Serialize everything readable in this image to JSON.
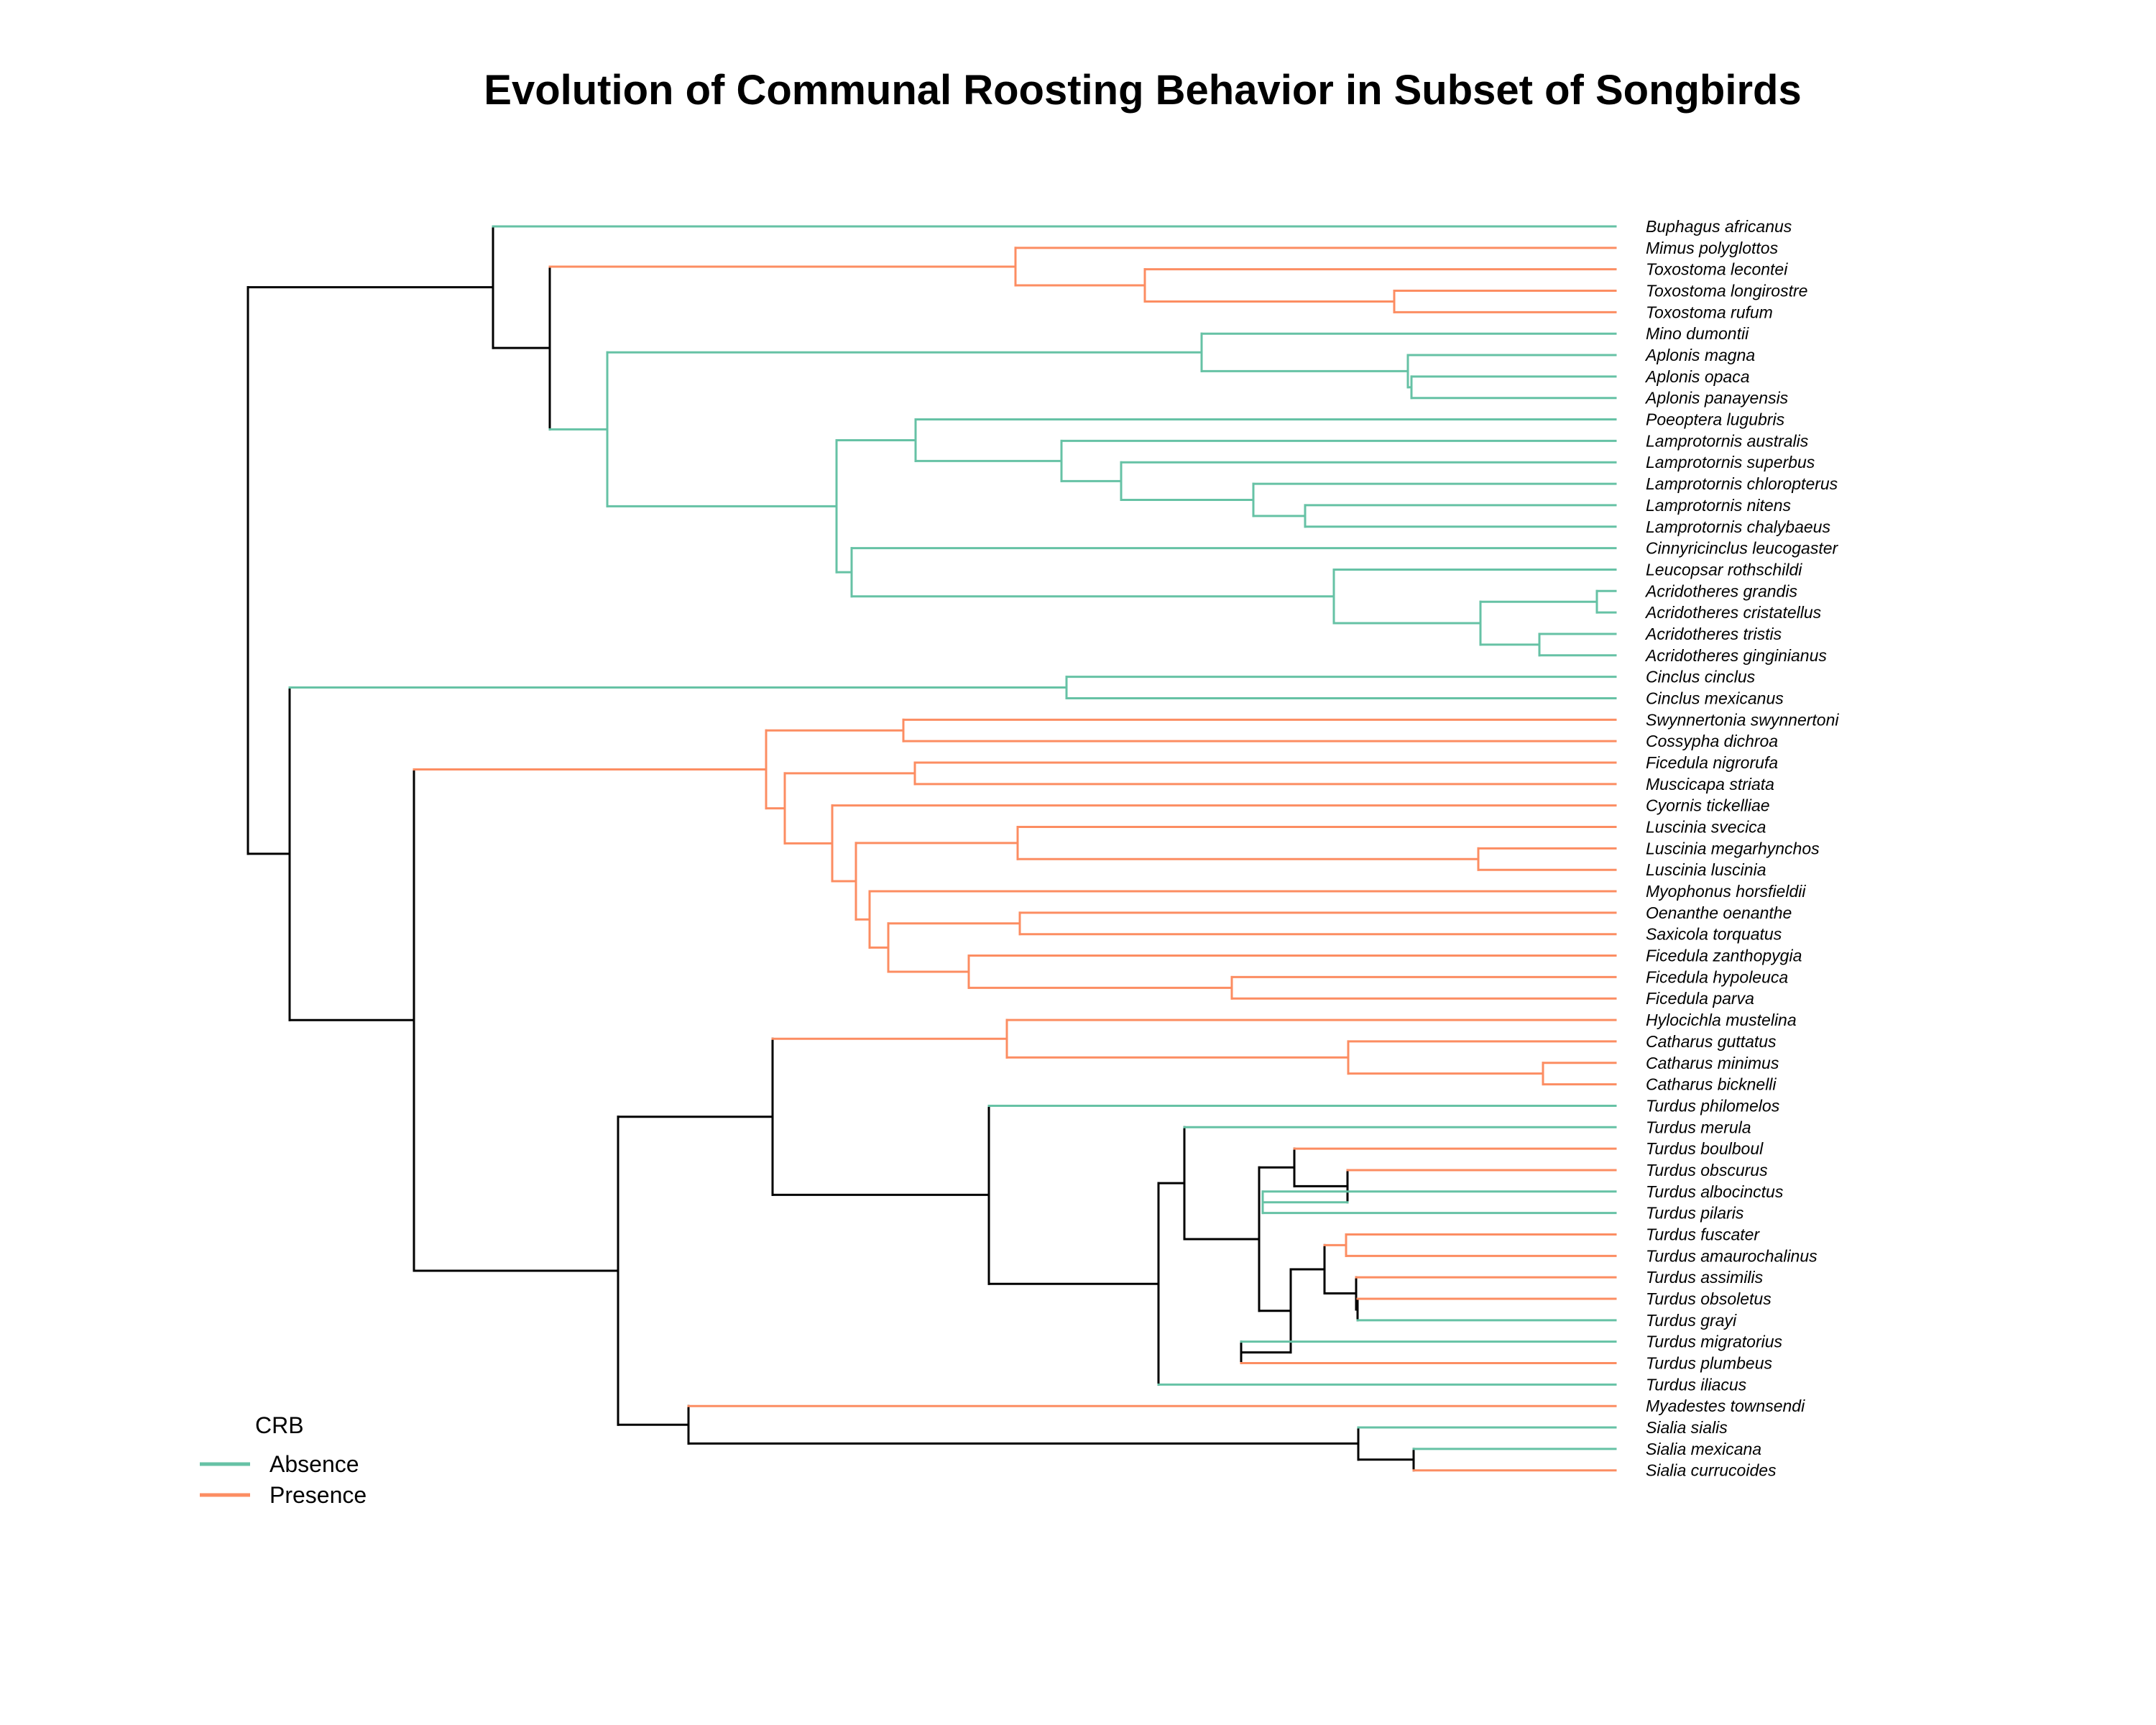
{
  "title": "Evolution of Communal Roosting Behavior in Subset of Songbirds",
  "colors": {
    "absence": "#66c2a5",
    "presence": "#fc8d62",
    "ancestral": "#000000"
  },
  "legend": {
    "title": "CRB",
    "items": [
      {
        "label": "Absence",
        "state": "absence"
      },
      {
        "label": "Presence",
        "state": "presence"
      }
    ]
  },
  "tips": [
    "Buphagus africanus",
    "Mimus polyglottos",
    "Toxostoma lecontei",
    "Toxostoma longirostre",
    "Toxostoma rufum",
    "Mino dumontii",
    "Aplonis magna",
    "Aplonis opaca",
    "Aplonis panayensis",
    "Poeoptera lugubris",
    "Lamprotornis australis",
    "Lamprotornis superbus",
    "Lamprotornis chloropterus",
    "Lamprotornis nitens",
    "Lamprotornis chalybaeus",
    "Cinnyricinclus leucogaster",
    "Leucopsar rothschildi",
    "Acridotheres grandis",
    "Acridotheres cristatellus",
    "Acridotheres tristis",
    "Acridotheres ginginianus",
    "Cinclus cinclus",
    "Cinclus mexicanus",
    "Swynnertonia swynnertoni",
    "Cossypha dichroa",
    "Ficedula nigrorufa",
    "Muscicapa striata",
    "Cyornis tickelliae",
    "Luscinia svecica",
    "Luscinia megarhynchos",
    "Luscinia luscinia",
    "Myophonus horsfieldii",
    "Oenanthe oenanthe",
    "Saxicola torquatus",
    "Ficedula zanthopygia",
    "Ficedula hypoleuca",
    "Ficedula parva",
    "Hylocichla mustelina",
    "Catharus guttatus",
    "Catharus minimus",
    "Catharus bicknelli",
    "Turdus philomelos",
    "Turdus merula",
    "Turdus boulboul",
    "Turdus obscurus",
    "Turdus albocinctus",
    "Turdus pilaris",
    "Turdus fuscater",
    "Turdus amaurochalinus",
    "Turdus assimilis",
    "Turdus obsoletus",
    "Turdus grayi",
    "Turdus migratorius",
    "Turdus plumbeus",
    "Turdus iliacus",
    "Myadestes townsendi",
    "Sialia sialis",
    "Sialia mexicana",
    "Sialia currucoides"
  ],
  "tip_states": [
    "absence",
    "presence",
    "presence",
    "presence",
    "presence",
    "absence",
    "absence",
    "absence",
    "absence",
    "absence",
    "absence",
    "absence",
    "absence",
    "absence",
    "absence",
    "absence",
    "absence",
    "absence",
    "absence",
    "absence",
    "absence",
    "absence",
    "absence",
    "presence",
    "presence",
    "presence",
    "presence",
    "presence",
    "presence",
    "presence",
    "presence",
    "presence",
    "presence",
    "presence",
    "presence",
    "presence",
    "presence",
    "presence",
    "presence",
    "presence",
    "presence",
    "absence",
    "absence",
    "presence",
    "presence",
    "absence",
    "absence",
    "presence",
    "presence",
    "presence",
    "presence",
    "absence",
    "absence",
    "presence",
    "absence",
    "presence",
    "absence",
    "absence",
    "presence"
  ],
  "tree": {
    "children": [
      {
        "children": [
          {
            "tip": 0
          },
          {
            "children": [
              {
                "children": [
                  {
                    "tip": 1
                  },
                  {
                    "children": [
                      {
                        "tip": 2
                      },
                      {
                        "children": [
                          {
                            "tip": 3
                          },
                          {
                            "tip": 4
                          }
                        ]
                      }
                    ]
                  }
                ]
              },
              {
                "children": [
                  {
                    "children": [
                      {
                        "tip": 5
                      },
                      {
                        "children": [
                          {
                            "tip": 6
                          },
                          {
                            "children": [
                              {
                                "tip": 7
                              },
                              {
                                "tip": 8
                              }
                            ]
                          }
                        ]
                      }
                    ]
                  },
                  {
                    "children": [
                      {
                        "children": [
                          {
                            "tip": 9
                          },
                          {
                            "children": [
                              {
                                "tip": 10
                              },
                              {
                                "children": [
                                  {
                                    "tip": 11
                                  },
                                  {
                                    "children": [
                                      {
                                        "tip": 12
                                      },
                                      {
                                        "children": [
                                          {
                                            "tip": 13
                                          },
                                          {
                                            "tip": 14
                                          }
                                        ]
                                      }
                                    ]
                                  }
                                ]
                              }
                            ]
                          }
                        ]
                      },
                      {
                        "children": [
                          {
                            "tip": 15
                          },
                          {
                            "children": [
                              {
                                "tip": 16
                              },
                              {
                                "children": [
                                  {
                                    "children": [
                                      {
                                        "tip": 17
                                      },
                                      {
                                        "tip": 18
                                      }
                                    ]
                                  },
                                  {
                                    "children": [
                                      {
                                        "tip": 19
                                      },
                                      {
                                        "tip": 20
                                      }
                                    ]
                                  }
                                ]
                              }
                            ]
                          }
                        ]
                      }
                    ]
                  }
                ]
              }
            ]
          }
        ]
      },
      {
        "children": [
          {
            "children": [
              {
                "tip": 21
              },
              {
                "tip": 22
              }
            ]
          },
          {
            "children": [
              {
                "children": [
                  {
                    "children": [
                      {
                        "tip": 23
                      },
                      {
                        "tip": 24
                      }
                    ]
                  },
                  {
                    "children": [
                      {
                        "children": [
                          {
                            "tip": 25
                          },
                          {
                            "tip": 26
                          }
                        ]
                      },
                      {
                        "children": [
                          {
                            "tip": 27
                          },
                          {
                            "children": [
                              {
                                "children": [
                                  {
                                    "tip": 28
                                  },
                                  {
                                    "children": [
                                      {
                                        "tip": 29
                                      },
                                      {
                                        "tip": 30
                                      }
                                    ]
                                  }
                                ]
                              },
                              {
                                "children": [
                                  {
                                    "tip": 31
                                  },
                                  {
                                    "children": [
                                      {
                                        "children": [
                                          {
                                            "tip": 32
                                          },
                                          {
                                            "tip": 33
                                          }
                                        ]
                                      },
                                      {
                                        "children": [
                                          {
                                            "tip": 34
                                          },
                                          {
                                            "children": [
                                              {
                                                "tip": 35
                                              },
                                              {
                                                "tip": 36
                                              }
                                            ]
                                          }
                                        ]
                                      }
                                    ]
                                  }
                                ]
                              }
                            ]
                          }
                        ]
                      }
                    ]
                  }
                ]
              },
              {
                "children": [
                  {
                    "children": [
                      {
                        "children": [
                          {
                            "tip": 37
                          },
                          {
                            "children": [
                              {
                                "tip": 38
                              },
                              {
                                "children": [
                                  {
                                    "tip": 39
                                  },
                                  {
                                    "tip": 40
                                  }
                                ]
                              }
                            ]
                          }
                        ]
                      },
                      {
                        "children": [
                          {
                            "tip": 41
                          },
                          {
                            "children": [
                              {
                                "children": [
                                  {
                                    "tip": 42
                                  },
                                  {
                                    "children": [
                                      {
                                        "children": [
                                          {
                                            "tip": 43
                                          },
                                          {
                                            "children": [
                                              {
                                                "tip": 44
                                              },
                                              {
                                                "children": [
                                                  {
                                                    "tip": 45
                                                  },
                                                  {
                                                    "tip": 46
                                                  }
                                                ]
                                              }
                                            ]
                                          }
                                        ]
                                      },
                                      {
                                        "children": [
                                          {
                                            "children": [
                                              {
                                                "children": [
                                                  {
                                                    "tip": 47
                                                  },
                                                  {
                                                    "tip": 48
                                                  }
                                                ]
                                              },
                                              {
                                                "children": [
                                                  {
                                                    "tip": 49
                                                  },
                                                  {
                                                    "children": [
                                                      {
                                                        "tip": 50
                                                      },
                                                      {
                                                        "tip": 51
                                                      }
                                                    ]
                                                  }
                                                ]
                                              }
                                            ]
                                          },
                                          {
                                            "children": [
                                              {
                                                "tip": 52
                                              },
                                              {
                                                "tip": 53
                                              }
                                            ]
                                          }
                                        ]
                                      }
                                    ]
                                  }
                                ]
                              },
                              {
                                "tip": 54
                              }
                            ]
                          }
                        ]
                      }
                    ]
                  },
                  {
                    "children": [
                      {
                        "tip": 55
                      },
                      {
                        "children": [
                          {
                            "tip": 56
                          },
                          {
                            "children": [
                              {
                                "tip": 57
                              },
                              {
                                "tip": 58
                              }
                            ]
                          }
                        ]
                      }
                    ]
                  }
                ]
              }
            ]
          }
        ]
      }
    ]
  }
}
